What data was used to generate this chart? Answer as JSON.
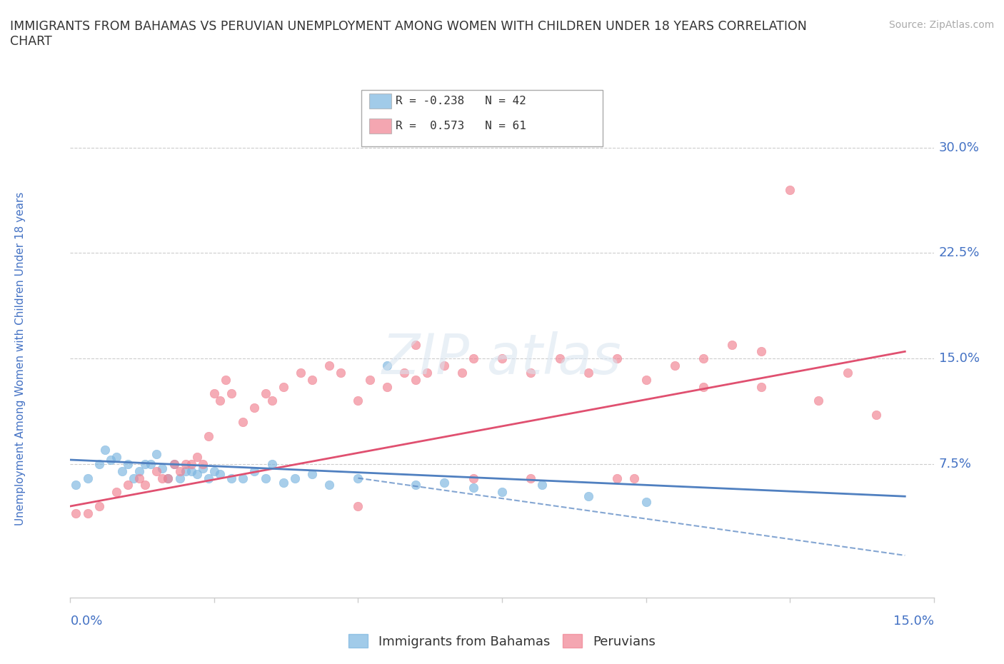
{
  "title": "IMMIGRANTS FROM BAHAMAS VS PERUVIAN UNEMPLOYMENT AMONG WOMEN WITH CHILDREN UNDER 18 YEARS CORRELATION\nCHART",
  "source": "Source: ZipAtlas.com",
  "ylabel_label": "Unemployment Among Women with Children Under 18 years",
  "legend_labels": [
    "Immigrants from Bahamas",
    "Peruvians"
  ],
  "legend_r": [
    {
      "label": "R = -0.238   N = 42",
      "color": "#a8c8f0"
    },
    {
      "label": "R =  0.573   N = 61",
      "color": "#f8b0c0"
    }
  ],
  "blue_color": "#7ab5e0",
  "pink_color": "#f08090",
  "blue_line_color": "#5080c0",
  "pink_line_color": "#e05070",
  "xmin": 0.0,
  "xmax": 0.15,
  "ymin": -0.02,
  "ymax": 0.32,
  "yticks": [
    0.075,
    0.15,
    0.225,
    0.3
  ],
  "ytick_labels": [
    "7.5%",
    "15.0%",
    "22.5%",
    "30.0%"
  ],
  "xticks": [
    0.0,
    0.025,
    0.05,
    0.075,
    0.1,
    0.125,
    0.15
  ],
  "grid_color": "#cccccc",
  "bg_color": "#ffffff",
  "title_color": "#333333",
  "axis_label_color": "#4472c4",
  "tick_label_color": "#4472c4",
  "blue_scatter_x": [
    0.001,
    0.003,
    0.005,
    0.006,
    0.007,
    0.008,
    0.009,
    0.01,
    0.011,
    0.012,
    0.013,
    0.014,
    0.015,
    0.016,
    0.017,
    0.018,
    0.019,
    0.02,
    0.021,
    0.022,
    0.023,
    0.024,
    0.025,
    0.026,
    0.028,
    0.03,
    0.032,
    0.034,
    0.035,
    0.037,
    0.039,
    0.042,
    0.045,
    0.05,
    0.055,
    0.06,
    0.065,
    0.07,
    0.075,
    0.082,
    0.09,
    0.1
  ],
  "blue_scatter_y": [
    0.06,
    0.065,
    0.075,
    0.085,
    0.078,
    0.08,
    0.07,
    0.075,
    0.065,
    0.07,
    0.075,
    0.075,
    0.082,
    0.072,
    0.065,
    0.075,
    0.065,
    0.07,
    0.07,
    0.068,
    0.072,
    0.065,
    0.07,
    0.068,
    0.065,
    0.065,
    0.07,
    0.065,
    0.075,
    0.062,
    0.065,
    0.068,
    0.06,
    0.065,
    0.145,
    0.06,
    0.062,
    0.058,
    0.055,
    0.06,
    0.052,
    0.048
  ],
  "pink_scatter_x": [
    0.001,
    0.003,
    0.005,
    0.008,
    0.01,
    0.012,
    0.013,
    0.015,
    0.016,
    0.017,
    0.018,
    0.019,
    0.02,
    0.021,
    0.022,
    0.023,
    0.024,
    0.025,
    0.026,
    0.027,
    0.028,
    0.03,
    0.032,
    0.034,
    0.035,
    0.037,
    0.04,
    0.042,
    0.045,
    0.047,
    0.05,
    0.052,
    0.055,
    0.058,
    0.06,
    0.062,
    0.065,
    0.068,
    0.07,
    0.075,
    0.08,
    0.085,
    0.09,
    0.095,
    0.098,
    0.1,
    0.105,
    0.11,
    0.115,
    0.12,
    0.125,
    0.13,
    0.135,
    0.14,
    0.095,
    0.11,
    0.07,
    0.08,
    0.05,
    0.12,
    0.06
  ],
  "pink_scatter_y": [
    0.04,
    0.04,
    0.045,
    0.055,
    0.06,
    0.065,
    0.06,
    0.07,
    0.065,
    0.065,
    0.075,
    0.07,
    0.075,
    0.075,
    0.08,
    0.075,
    0.095,
    0.125,
    0.12,
    0.135,
    0.125,
    0.105,
    0.115,
    0.125,
    0.12,
    0.13,
    0.14,
    0.135,
    0.145,
    0.14,
    0.12,
    0.135,
    0.13,
    0.14,
    0.135,
    0.14,
    0.145,
    0.14,
    0.15,
    0.15,
    0.14,
    0.15,
    0.14,
    0.15,
    0.065,
    0.135,
    0.145,
    0.15,
    0.16,
    0.155,
    0.27,
    0.12,
    0.14,
    0.11,
    0.065,
    0.13,
    0.065,
    0.065,
    0.045,
    0.13,
    0.16
  ],
  "blue_trend_x": [
    0.0,
    0.145
  ],
  "blue_trend_y": [
    0.078,
    0.052
  ],
  "pink_trend_x": [
    0.0,
    0.145
  ],
  "pink_trend_y": [
    0.045,
    0.155
  ],
  "blue_dashed_trend_x": [
    0.05,
    0.145
  ],
  "blue_dashed_trend_y": [
    0.065,
    0.01
  ]
}
